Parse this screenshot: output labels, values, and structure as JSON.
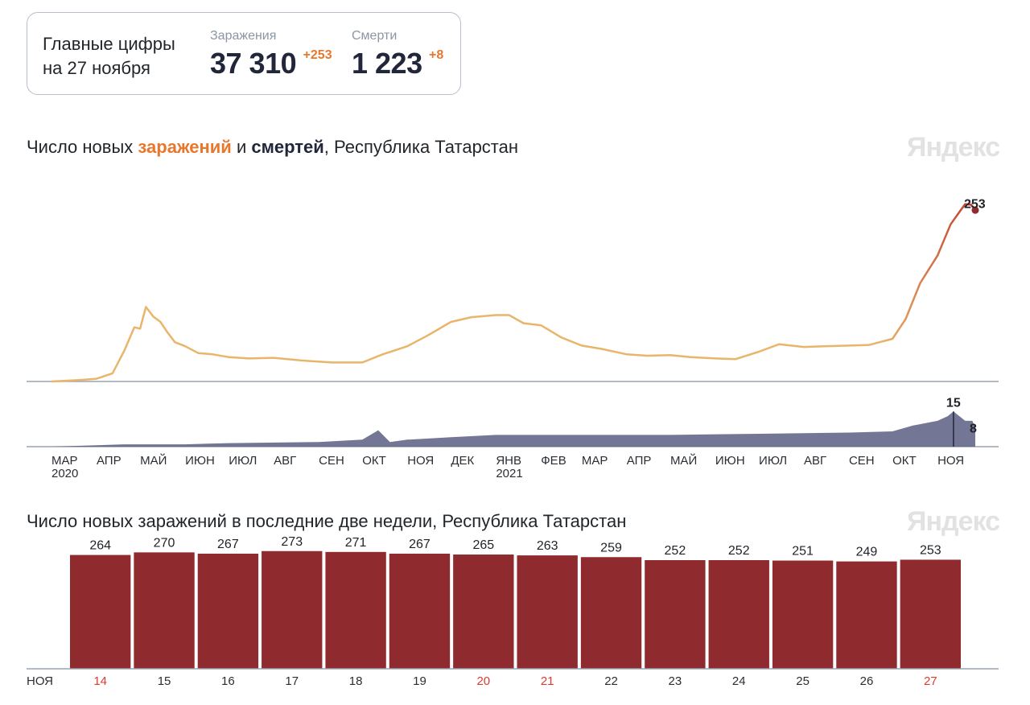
{
  "summary": {
    "heading_line1": "Главные цифры",
    "heading_line2": "на 27 ноября",
    "infections": {
      "label": "Заражения",
      "value": "37 310",
      "delta": "+253"
    },
    "deaths": {
      "label": "Смерти",
      "value": "1 223",
      "delta": "+8"
    }
  },
  "watermark": "Яндекс",
  "colors": {
    "infections_early": "#e8b56a",
    "infections_late": "#c0392b",
    "deaths_area": "#5a5f82",
    "bars": "#8f2a2e",
    "weekend": "#e03a2e",
    "axis": "#9aa3b0"
  },
  "chart_data": [
    {
      "type": "line",
      "title_parts": [
        "Число новых ",
        "заражений",
        " и ",
        "смертей",
        ", Республика Татарстан"
      ],
      "x_range": [
        "2020-03-01",
        "2021-11-27"
      ],
      "month_ticks": [
        {
          "label": "МАР",
          "year": "2020"
        },
        {
          "label": "АПР"
        },
        {
          "label": "МАЙ"
        },
        {
          "label": "ИЮН"
        },
        {
          "label": "ИЮЛ"
        },
        {
          "label": "АВГ"
        },
        {
          "label": "СЕН"
        },
        {
          "label": "ОКТ"
        },
        {
          "label": "НОЯ"
        },
        {
          "label": "ДЕК"
        },
        {
          "label": "ЯНВ",
          "year": "2021"
        },
        {
          "label": "ФЕВ"
        },
        {
          "label": "МАР"
        },
        {
          "label": "АПР"
        },
        {
          "label": "МАЙ"
        },
        {
          "label": "ИЮН"
        },
        {
          "label": "ИЮЛ"
        },
        {
          "label": "АВГ"
        },
        {
          "label": "СЕН"
        },
        {
          "label": "ОКТ"
        },
        {
          "label": "НОЯ"
        }
      ],
      "series": [
        {
          "name": "заражений",
          "ylim": [
            0,
            290
          ],
          "x": [
            "2020-03-01",
            "2020-03-20",
            "2020-04-01",
            "2020-04-12",
            "2020-04-20",
            "2020-04-27",
            "2020-05-01",
            "2020-05-05",
            "2020-05-10",
            "2020-05-15",
            "2020-05-20",
            "2020-05-25",
            "2020-06-01",
            "2020-06-10",
            "2020-06-20",
            "2020-07-01",
            "2020-07-15",
            "2020-08-01",
            "2020-08-20",
            "2020-09-10",
            "2020-10-01",
            "2020-10-15",
            "2020-11-01",
            "2020-11-15",
            "2020-12-01",
            "2020-12-15",
            "2021-01-01",
            "2021-01-10",
            "2021-01-20",
            "2021-02-01",
            "2021-02-15",
            "2021-03-01",
            "2021-03-15",
            "2021-04-01",
            "2021-04-15",
            "2021-05-01",
            "2021-05-15",
            "2021-06-01",
            "2021-06-15",
            "2021-07-01",
            "2021-07-15",
            "2021-08-01",
            "2021-08-15",
            "2021-09-01",
            "2021-09-15",
            "2021-10-01",
            "2021-10-10",
            "2021-10-20",
            "2021-11-01",
            "2021-11-10",
            "2021-11-17",
            "2021-11-20",
            "2021-11-24",
            "2021-11-27"
          ],
          "values": [
            0,
            2,
            4,
            12,
            45,
            80,
            78,
            110,
            96,
            88,
            72,
            58,
            52,
            42,
            40,
            36,
            34,
            35,
            31,
            28,
            28,
            40,
            52,
            68,
            88,
            95,
            98,
            98,
            86,
            83,
            65,
            53,
            48,
            40,
            38,
            39,
            36,
            34,
            33,
            44,
            55,
            51,
            52,
            53,
            54,
            63,
            92,
            145,
            186,
            232,
            253,
            262,
            261,
            253
          ]
        },
        {
          "name": "смертей",
          "ylim": [
            0,
            24
          ],
          "x": [
            "2020-03-01",
            "2020-04-20",
            "2020-06-01",
            "2020-07-01",
            "2020-09-01",
            "2020-10-01",
            "2020-10-12",
            "2020-10-20",
            "2020-11-01",
            "2020-12-01",
            "2021-01-01",
            "2021-02-01",
            "2021-03-01",
            "2021-05-01",
            "2021-07-01",
            "2021-09-01",
            "2021-10-01",
            "2021-10-15",
            "2021-11-01",
            "2021-11-08",
            "2021-11-12",
            "2021-11-20",
            "2021-11-25",
            "2021-11-27"
          ],
          "values": [
            0,
            1,
            1,
            1.5,
            2,
            3,
            7,
            2,
            3,
            4,
            5,
            5,
            5,
            5,
            5.5,
            6,
            6.5,
            9,
            11,
            13,
            15,
            11,
            11,
            8
          ]
        }
      ],
      "labels": [
        {
          "series": "заражений",
          "text": "253"
        },
        {
          "series": "смертей",
          "peak": "15",
          "end": "8"
        }
      ]
    },
    {
      "type": "bar",
      "title": "Число новых заражений в последние две недели, Республика Татарстан",
      "month_label": "НОЯ",
      "categories": [
        "14",
        "15",
        "16",
        "17",
        "18",
        "19",
        "20",
        "21",
        "22",
        "23",
        "24",
        "25",
        "26",
        "27"
      ],
      "values": [
        264,
        270,
        267,
        273,
        271,
        267,
        265,
        263,
        259,
        252,
        252,
        251,
        249,
        253
      ],
      "weekend": [
        true,
        false,
        false,
        false,
        false,
        false,
        true,
        true,
        false,
        false,
        false,
        false,
        false,
        true
      ],
      "ylim": [
        0,
        280
      ]
    }
  ]
}
